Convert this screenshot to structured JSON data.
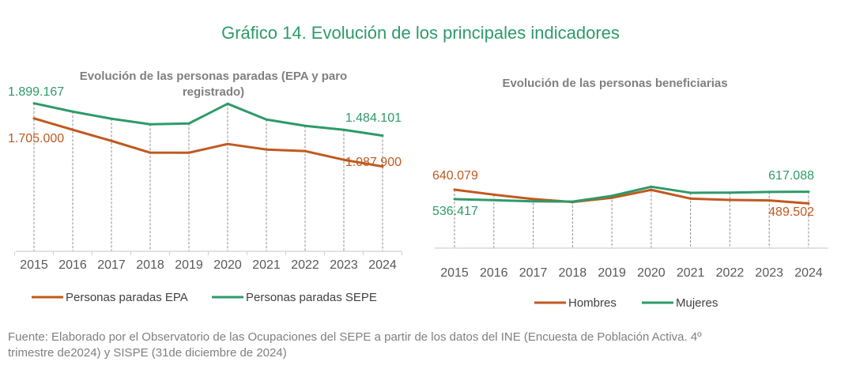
{
  "title": "Gráfico 14. Evolución de los principales indicadores",
  "footer": [
    "Fuente: Elaborado por el Observatorio de las Ocupaciones del SEPE a partir de los datos del INE (Encuesta de Población Activa. 4º",
    "trimestre de2024) y SISPE (31de diciembre de 2024)"
  ],
  "colors": {
    "orange": "#c0591f",
    "green": "#2e9a6a"
  },
  "chart_data": [
    {
      "type": "line",
      "title": [
        "Evolución de las personas paradas (EPA y paro",
        "registrado)"
      ],
      "categories": [
        "2015",
        "2016",
        "2017",
        "2018",
        "2019",
        "2020",
        "2021",
        "2022",
        "2023",
        "2024"
      ],
      "ylim": [
        0,
        1900000
      ],
      "grid": "vertical dashed drop lines",
      "legend": "bottom",
      "series": [
        {
          "name": "Personas paradas EPA",
          "color": "#c0591f",
          "values": [
            1705000,
            1559000,
            1417000,
            1266000,
            1265000,
            1377000,
            1306000,
            1286000,
            1174000,
            1087900
          ],
          "labels": {
            "first": "1.705.000",
            "last": "1.087.900"
          }
        },
        {
          "name": "Personas paradas SEPE",
          "color": "#2e9a6a",
          "values": [
            1899167,
            1792000,
            1701000,
            1630000,
            1640000,
            1893000,
            1691000,
            1610000,
            1559000,
            1484101
          ],
          "labels": {
            "first": "1.899.167",
            "last": "1.484.101"
          }
        }
      ]
    },
    {
      "type": "line",
      "title": [
        "Evolución de las personas beneficiarias"
      ],
      "categories": [
        "2015",
        "2016",
        "2017",
        "2018",
        "2019",
        "2020",
        "2021",
        "2022",
        "2023",
        "2024"
      ],
      "ylim": [
        0,
        700000
      ],
      "grid": "vertical dashed drop lines",
      "legend": "bottom",
      "series": [
        {
          "name": "Hombres",
          "color": "#c0591f",
          "values": [
            640079,
            585500,
            537000,
            505000,
            551000,
            638000,
            542000,
            528000,
            522000,
            489502
          ],
          "labels": {
            "first": "640.079",
            "last": "489.502"
          }
        },
        {
          "name": "Mujeres",
          "color": "#2e9a6a",
          "values": [
            536417,
            525000,
            513000,
            509000,
            572000,
            672000,
            606000,
            608000,
            615000,
            617088
          ],
          "labels": {
            "first": "536.417",
            "last": "617.088"
          }
        }
      ]
    }
  ]
}
